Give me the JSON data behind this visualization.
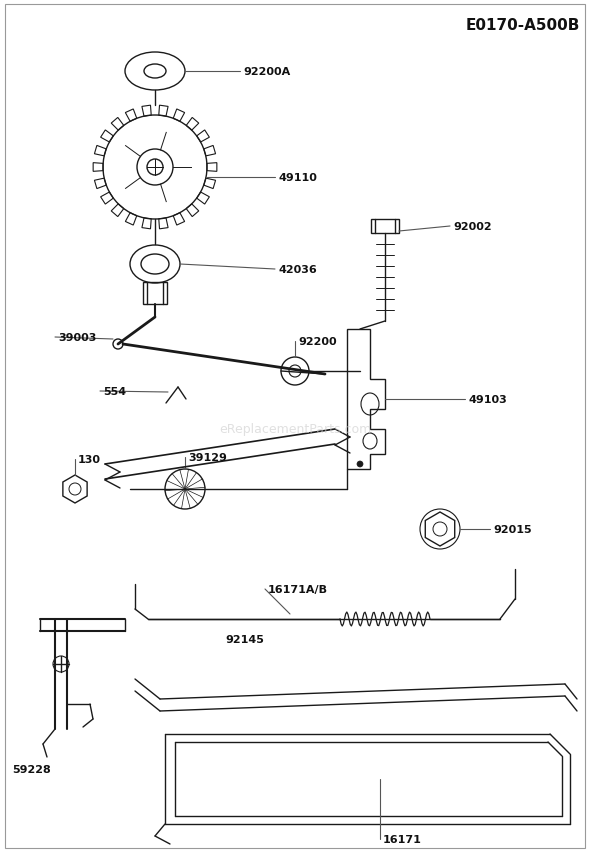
{
  "title": "E0170-A500B",
  "bg_color": "#ffffff",
  "line_color": "#1a1a1a",
  "label_color": "#111111",
  "watermark": "eReplacementParts.com",
  "fig_width": 5.9,
  "fig_height": 8.54,
  "dpi": 100
}
